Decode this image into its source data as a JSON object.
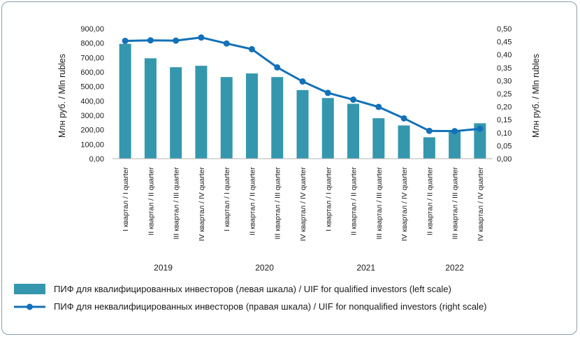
{
  "chart_data": {
    "type": "bar+line",
    "categories": [
      "I квартал / I quarter",
      "II квартал / II quarter",
      "III квартал / III quarter",
      "IV квартал / IV quarter",
      "I квартал / I quarter",
      "II квартал / II quarter",
      "III квартал / III quarter",
      "IV квартал / IV quarter",
      "I квартал / I quarter",
      "II квартал / II quarter",
      "III квартал / III quarter",
      "IV квартал / IV quarter",
      "II квартал / II quarter",
      "III квартал / III quarter",
      "IV квартал / IV quarter"
    ],
    "years": [
      {
        "label": "2019",
        "start": 0,
        "end": 3
      },
      {
        "label": "2020",
        "start": 4,
        "end": 7
      },
      {
        "label": "2021",
        "start": 8,
        "end": 11
      },
      {
        "label": "2022",
        "start": 12,
        "end": 14
      }
    ],
    "series": [
      {
        "name": "ПИФ для квалифицированных инвесторов  (левая шкала) / UIF for qualified investors (left scale)",
        "type": "bar",
        "axis": "left",
        "color": "#3597ad",
        "values": [
          795,
          695,
          633,
          643,
          565,
          590,
          565,
          475,
          420,
          380,
          280,
          230,
          148,
          190,
          245
        ]
      },
      {
        "name": "ПИФ для неквалифицированных инвесторов (правая шкала) / UIF for nonqualified investors (right scale)",
        "type": "line",
        "axis": "right",
        "color": "#1271b8",
        "values": [
          0.453,
          0.455,
          0.454,
          0.466,
          0.443,
          0.421,
          0.351,
          0.297,
          0.253,
          0.227,
          0.199,
          0.155,
          0.107,
          0.106,
          0.115
        ]
      }
    ],
    "left_axis": {
      "label": "Млн руб. / Mln rubles",
      "ylim": [
        0,
        900
      ],
      "ticks": [
        "0,00",
        "100,00",
        "200,00",
        "300,00",
        "400,00",
        "500,00",
        "600,00",
        "700,00",
        "800,00",
        "900,00"
      ]
    },
    "right_axis": {
      "label": "Млн руб. / Mln rubles",
      "ylim": [
        0,
        0.5
      ],
      "ticks": [
        "0,00",
        "0,05",
        "0,10",
        "0,15",
        "0,20",
        "0,25",
        "0,30",
        "0,35",
        "0,40",
        "0,45",
        "0,50"
      ]
    },
    "grid": false,
    "legend_position": "bottom"
  }
}
